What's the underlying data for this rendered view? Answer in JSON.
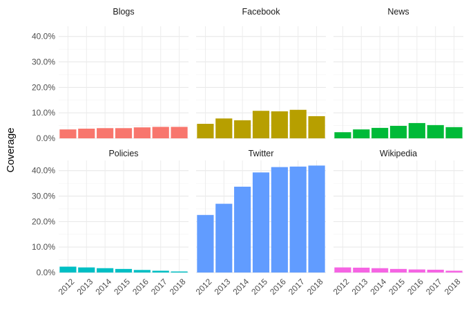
{
  "chart_data": {
    "type": "bar",
    "layout": "faceted 2x3",
    "ylabel": "Coverage",
    "xlabel": "",
    "ylim": [
      0,
      0.44
    ],
    "y_ticks": [
      0,
      0.1,
      0.2,
      0.3,
      0.4
    ],
    "y_tick_labels": [
      "0.0%",
      "10.0%",
      "20.0%",
      "30.0%",
      "40.0%"
    ],
    "categories": [
      "2012",
      "2013",
      "2014",
      "2015",
      "2016",
      "2017",
      "2018"
    ],
    "grid": true,
    "legend": "none",
    "series": [
      {
        "name": "Blogs",
        "color": "#F8766D",
        "values": [
          0.035,
          0.038,
          0.04,
          0.04,
          0.043,
          0.045,
          0.045
        ]
      },
      {
        "name": "Facebook",
        "color": "#B79F00",
        "values": [
          0.057,
          0.078,
          0.071,
          0.108,
          0.106,
          0.112,
          0.087
        ]
      },
      {
        "name": "News",
        "color": "#00BA38",
        "values": [
          0.024,
          0.035,
          0.041,
          0.049,
          0.06,
          0.052,
          0.044
        ]
      },
      {
        "name": "Policies",
        "color": "#00BFC4",
        "values": [
          0.023,
          0.02,
          0.017,
          0.014,
          0.01,
          0.007,
          0.004
        ]
      },
      {
        "name": "Twitter",
        "color": "#619CFF",
        "values": [
          0.226,
          0.27,
          0.337,
          0.393,
          0.414,
          0.416,
          0.42
        ]
      },
      {
        "name": "Wikipedia",
        "color": "#F564E3",
        "values": [
          0.02,
          0.019,
          0.017,
          0.014,
          0.012,
          0.011,
          0.007
        ]
      }
    ]
  }
}
